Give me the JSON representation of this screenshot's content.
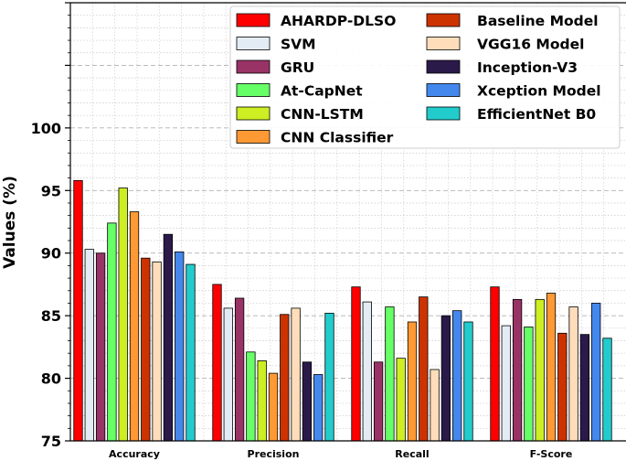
{
  "chart_data": {
    "type": "bar",
    "title": "",
    "xlabel": "",
    "ylabel": "Values (%)",
    "ylim": [
      75,
      110
    ],
    "yticks": [
      75,
      80,
      85,
      90,
      95,
      100
    ],
    "grid": true,
    "legend_position": "top-right",
    "categories": [
      "Accuracy",
      "Precision",
      "Recall",
      "F-Score"
    ],
    "series": [
      {
        "name": "AHARDP-DLSO",
        "color": "#ff0000",
        "values": [
          95.8,
          87.5,
          87.3,
          87.3
        ]
      },
      {
        "name": "SVM",
        "color": "#e3ecf5",
        "values": [
          90.3,
          85.6,
          86.1,
          84.2
        ]
      },
      {
        "name": "GRU",
        "color": "#993366",
        "values": [
          90.0,
          86.4,
          81.3,
          86.3
        ]
      },
      {
        "name": "At-CapNet",
        "color": "#66ff66",
        "values": [
          92.4,
          82.1,
          85.7,
          84.1
        ]
      },
      {
        "name": "CNN-LSTM",
        "color": "#ccee22",
        "values": [
          95.2,
          81.4,
          81.6,
          86.3
        ]
      },
      {
        "name": "CNN Classifier",
        "color": "#ff9933",
        "values": [
          93.3,
          80.4,
          84.5,
          86.8
        ]
      },
      {
        "name": "Baseline Model",
        "color": "#cc3300",
        "values": [
          89.6,
          85.1,
          86.5,
          83.6
        ]
      },
      {
        "name": "VGG16 Model",
        "color": "#ffddbb",
        "values": [
          89.3,
          85.6,
          80.7,
          85.7
        ]
      },
      {
        "name": "Inception-V3",
        "color": "#2a1a4a",
        "values": [
          91.5,
          81.3,
          85.0,
          83.5
        ]
      },
      {
        "name": "Xception Model",
        "color": "#4488ee",
        "values": [
          90.1,
          80.3,
          85.4,
          86.0
        ]
      },
      {
        "name": "EfficientNet B0",
        "color": "#22cccc",
        "values": [
          89.1,
          85.2,
          84.5,
          83.2
        ]
      }
    ]
  }
}
